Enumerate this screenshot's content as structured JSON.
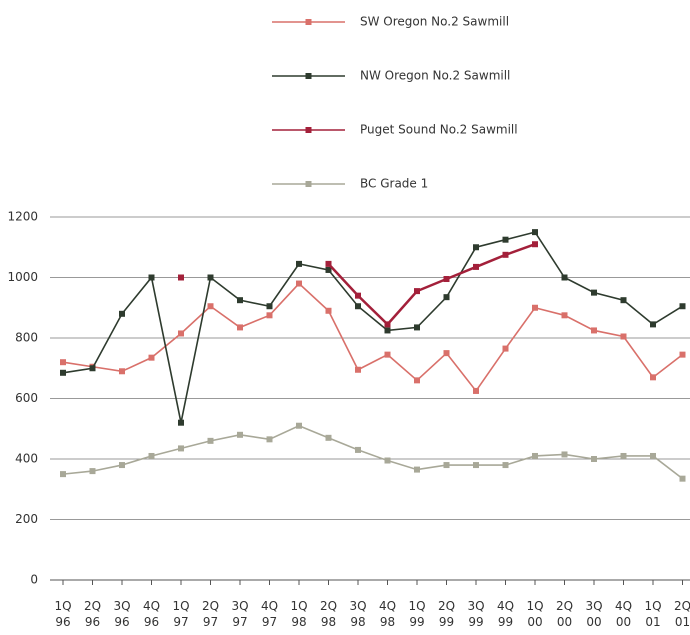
{
  "chart_data": {
    "type": "line",
    "categories": [
      "1Q 96",
      "2Q 96",
      "3Q 96",
      "4Q 96",
      "1Q 97",
      "2Q 97",
      "3Q 97",
      "4Q 97",
      "1Q 98",
      "2Q 98",
      "3Q 98",
      "4Q 98",
      "1Q 99",
      "2Q 99",
      "3Q 99",
      "4Q 99",
      "1Q 00",
      "2Q 00",
      "3Q 00",
      "4Q 00",
      "1Q 01",
      "2Q 01"
    ],
    "series": [
      {
        "name": "SW Oregon No.2 Sawmill",
        "color": "#d9706a",
        "values": [
          720,
          705,
          690,
          735,
          815,
          905,
          835,
          875,
          980,
          890,
          695,
          745,
          660,
          750,
          625,
          765,
          900,
          875,
          825,
          805,
          670,
          745
        ]
      },
      {
        "name": "NW Oregon No.2 Sawmill",
        "color": "#2e3b2e",
        "values": [
          685,
          700,
          880,
          1000,
          520,
          1000,
          925,
          905,
          1045,
          1025,
          905,
          825,
          835,
          935,
          1100,
          1125,
          1150,
          1000,
          950,
          925,
          845,
          905
        ]
      },
      {
        "name": "Puget Sound No.2 Sawmill",
        "color": "#a3203a",
        "values": [
          null,
          null,
          null,
          null,
          1000,
          null,
          null,
          null,
          null,
          1045,
          940,
          845,
          955,
          995,
          1035,
          1075,
          1110,
          null,
          null,
          null,
          null,
          null
        ]
      },
      {
        "name": "BC Grade 1",
        "color": "#a8a898",
        "values": [
          350,
          360,
          380,
          410,
          435,
          460,
          480,
          465,
          510,
          470,
          430,
          395,
          365,
          380,
          380,
          380,
          410,
          415,
          400,
          410,
          410,
          335
        ]
      }
    ],
    "ylim": [
      0,
      1200
    ],
    "yticks": [
      0,
      200,
      400,
      600,
      800,
      1000,
      1200
    ],
    "grid": true
  }
}
